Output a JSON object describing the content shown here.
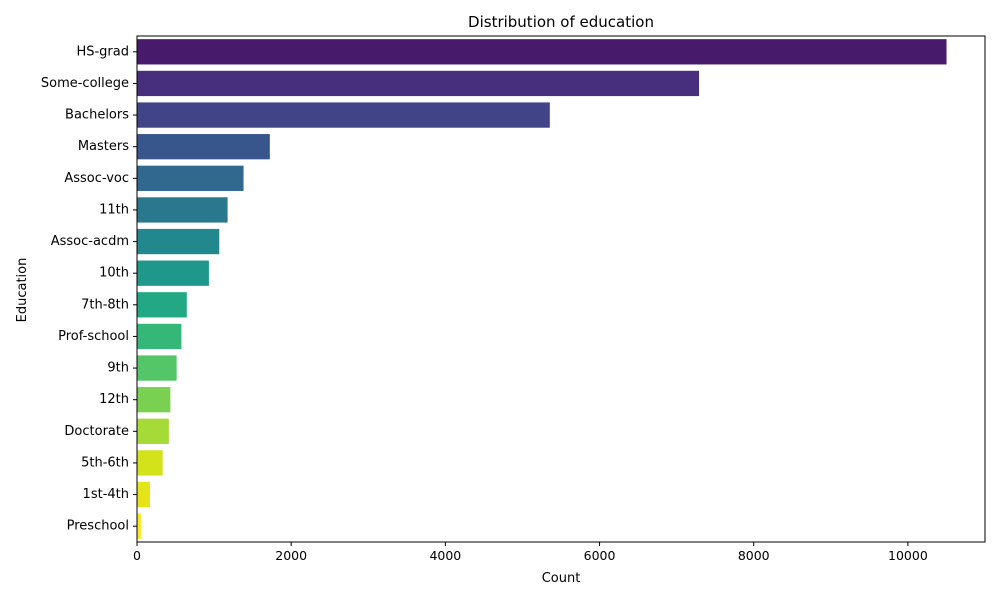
{
  "chart_data": {
    "type": "bar",
    "orientation": "horizontal",
    "title": "Distribution of education",
    "xlabel": "Count",
    "ylabel": "Education",
    "xlim": [
      0,
      11000
    ],
    "xticks": [
      0,
      2000,
      4000,
      6000,
      8000,
      10000
    ],
    "grid": false,
    "categories": [
      "HS-grad",
      "Some-college",
      "Bachelors",
      "Masters",
      "Assoc-voc",
      "11th",
      "Assoc-acdm",
      "10th",
      "7th-8th",
      "Prof-school",
      "9th",
      "12th",
      "Doctorate",
      "5th-6th",
      "1st-4th",
      "Preschool"
    ],
    "values": [
      10501,
      7291,
      5355,
      1723,
      1382,
      1175,
      1067,
      933,
      646,
      576,
      514,
      433,
      413,
      333,
      168,
      51
    ],
    "colors": [
      "#481a6c",
      "#472f7d",
      "#414487",
      "#39568c",
      "#31688e",
      "#2a788e",
      "#23888e",
      "#1f988b",
      "#22a884",
      "#35b779",
      "#54c568",
      "#7ad151",
      "#a5db36",
      "#d2e21b",
      "#e5e419",
      "#fde725"
    ]
  }
}
